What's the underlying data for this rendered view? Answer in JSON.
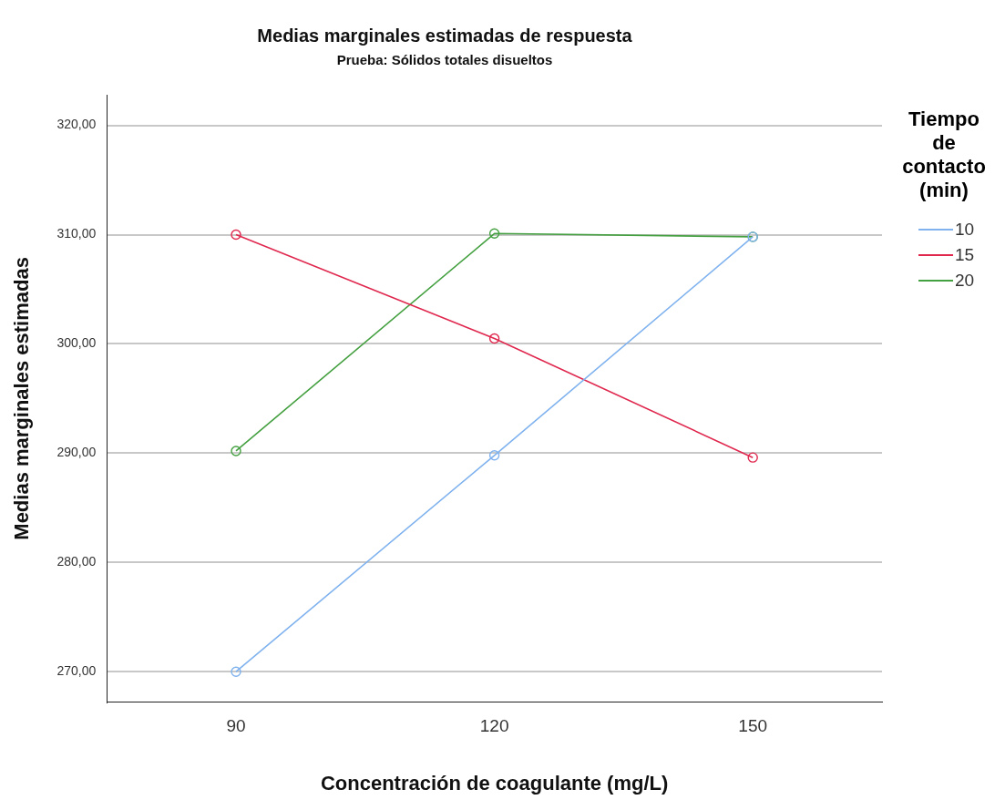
{
  "chart_data": {
    "type": "line",
    "title": "Medias marginales estimadas de respuesta",
    "subtitle": "Prueba: Sólidos totales disueltos",
    "xlabel": "Concentración de coagulante (mg/L)",
    "ylabel": "Medias marginales estimadas",
    "legend_title": "Tiempo de contacto (min)",
    "categories": [
      "90",
      "120",
      "150"
    ],
    "series": [
      {
        "name": "10",
        "color": "#7fb2ee",
        "values": [
          270,
          289.8,
          309.8
        ]
      },
      {
        "name": "15",
        "color": "#e0284f",
        "values": [
          310,
          300.5,
          289.6
        ]
      },
      {
        "name": "20",
        "color": "#44a040",
        "values": [
          290.2,
          310.1,
          309.8
        ]
      }
    ],
    "ylim": [
      267.2,
      322.8
    ],
    "yticks": [
      {
        "value": 270,
        "label": "270,00"
      },
      {
        "value": 280,
        "label": "280,00"
      },
      {
        "value": 290,
        "label": "290,00"
      },
      {
        "value": 300,
        "label": "300,00"
      },
      {
        "value": 310,
        "label": "310,00"
      },
      {
        "value": 320,
        "label": "320,00"
      }
    ],
    "grid": "y",
    "legend": "right",
    "marker": "circle",
    "line_style": "solid"
  }
}
